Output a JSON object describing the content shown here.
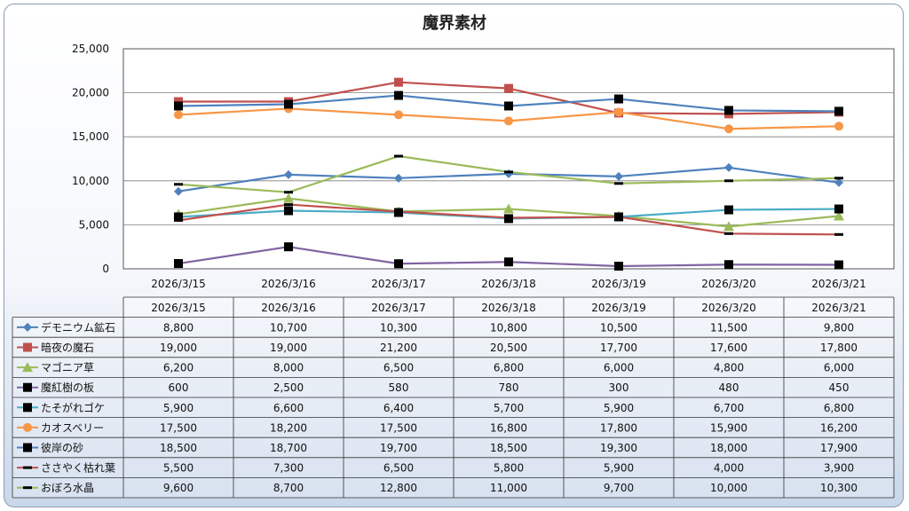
{
  "chart_data": {
    "type": "line",
    "title": "魔界素材",
    "categories": [
      "2026/3/15",
      "2026/3/16",
      "2026/3/17",
      "2026/3/18",
      "2026/3/19",
      "2026/3/20",
      "2026/3/21"
    ],
    "ylim": [
      0,
      25000
    ],
    "yticks": [
      "0",
      "5,000",
      "10,000",
      "15,000",
      "20,000",
      "25,000"
    ],
    "grid": true,
    "legend": "data-table",
    "series": [
      {
        "name": "デモニウム鉱石",
        "color": "#4f81bd",
        "marker": "diamond",
        "values": [
          8800,
          10700,
          10300,
          10800,
          10500,
          11500,
          9800
        ],
        "labels": [
          "8,800",
          "10,700",
          "10,300",
          "10,800",
          "10,500",
          "11,500",
          "9,800"
        ]
      },
      {
        "name": "暗夜の魔石",
        "color": "#c0504d",
        "marker": "square",
        "values": [
          19000,
          19000,
          21200,
          20500,
          17700,
          17600,
          17800
        ],
        "labels": [
          "19,000",
          "19,000",
          "21,200",
          "20,500",
          "17,700",
          "17,600",
          "17,800"
        ]
      },
      {
        "name": "マゴニア草",
        "color": "#9bbb59",
        "marker": "triangle",
        "values": [
          6200,
          8000,
          6500,
          6800,
          6000,
          4800,
          6000
        ],
        "labels": [
          "6,200",
          "8,000",
          "6,500",
          "6,800",
          "6,000",
          "4,800",
          "6,000"
        ]
      },
      {
        "name": "魔紅樹の板",
        "color": "#8064a2",
        "marker": "bsquare",
        "values": [
          600,
          2500,
          580,
          780,
          300,
          480,
          450
        ],
        "labels": [
          "600",
          "2,500",
          "580",
          "780",
          "300",
          "480",
          "450"
        ]
      },
      {
        "name": "たそがれゴケ",
        "color": "#4bacc6",
        "marker": "bsquare",
        "values": [
          5900,
          6600,
          6400,
          5700,
          5900,
          6700,
          6800
        ],
        "labels": [
          "5,900",
          "6,600",
          "6,400",
          "5,700",
          "5,900",
          "6,700",
          "6,800"
        ]
      },
      {
        "name": "カオスベリー",
        "color": "#f79646",
        "marker": "circle",
        "values": [
          17500,
          18200,
          17500,
          16800,
          17800,
          15900,
          16200
        ],
        "labels": [
          "17,500",
          "18,200",
          "17,500",
          "16,800",
          "17,800",
          "15,900",
          "16,200"
        ]
      },
      {
        "name": "彼岸の砂",
        "color": "#4f81bd",
        "marker": "bsquare",
        "values": [
          18500,
          18700,
          19700,
          18500,
          19300,
          18000,
          17900
        ],
        "labels": [
          "18,500",
          "18,700",
          "19,700",
          "18,500",
          "19,300",
          "18,000",
          "17,900"
        ]
      },
      {
        "name": "ささやく枯れ葉",
        "color": "#c0504d",
        "marker": "dash",
        "values": [
          5500,
          7300,
          6500,
          5800,
          5900,
          4000,
          3900
        ],
        "labels": [
          "5,500",
          "7,300",
          "6,500",
          "5,800",
          "5,900",
          "4,000",
          "3,900"
        ]
      },
      {
        "name": "おぼろ水晶",
        "color": "#9bbb59",
        "marker": "dash",
        "values": [
          9600,
          8700,
          12800,
          11000,
          9700,
          10000,
          10300
        ],
        "labels": [
          "9,600",
          "8,700",
          "12,800",
          "11,000",
          "9,700",
          "10,000",
          "10,300"
        ]
      }
    ]
  }
}
